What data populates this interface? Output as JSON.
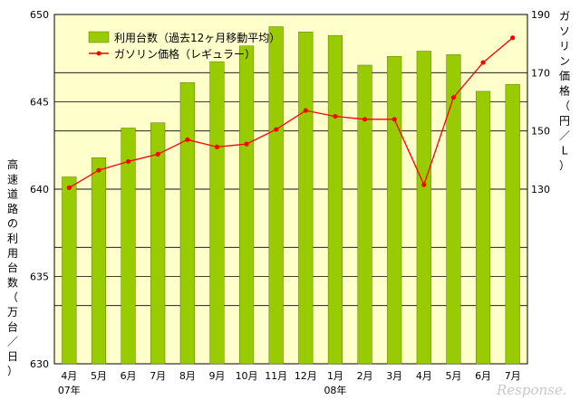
{
  "chart_data": {
    "type": "bar+line",
    "categories": [
      "4月",
      "5月",
      "6月",
      "7月",
      "8月",
      "9月",
      "10月",
      "11月",
      "12月",
      "1月",
      "2月",
      "3月",
      "4月",
      "5月",
      "6月",
      "7月"
    ],
    "year_labels": [
      {
        "text": "07年",
        "index": 0
      },
      {
        "text": "08年",
        "index": 9
      }
    ],
    "series": [
      {
        "name": "利用台数（過去12ヶ月移動平均）",
        "type": "bar",
        "axis": "left",
        "color": "#99cc00",
        "values": [
          640.7,
          641.8,
          643.5,
          643.8,
          646.1,
          647.3,
          648.2,
          649.3,
          649.0,
          648.8,
          647.1,
          647.6,
          647.9,
          647.7,
          645.6,
          646.0
        ]
      },
      {
        "name": "ガソリン価格（レギュラー）",
        "type": "line",
        "axis": "right",
        "color": "#ff0000",
        "values": [
          130.5,
          136.5,
          139.5,
          142,
          147,
          144.5,
          145.5,
          150.5,
          157,
          155,
          154,
          154,
          131.5,
          161.5,
          173.5,
          182
        ]
      }
    ],
    "y_left": {
      "label": "高速道路の利用台数（万台／日）",
      "min": 630,
      "max": 650,
      "ticks": [
        "630",
        "635",
        "640",
        "645",
        "650"
      ]
    },
    "y_right": {
      "label": "ガソリン価格（円／L）",
      "min": 70,
      "max": 190,
      "ticks": [
        "130",
        "150",
        "170",
        "190"
      ]
    },
    "grid": true,
    "legend": "top-left",
    "background_color": "#ffffcc",
    "watermark": "Response."
  }
}
